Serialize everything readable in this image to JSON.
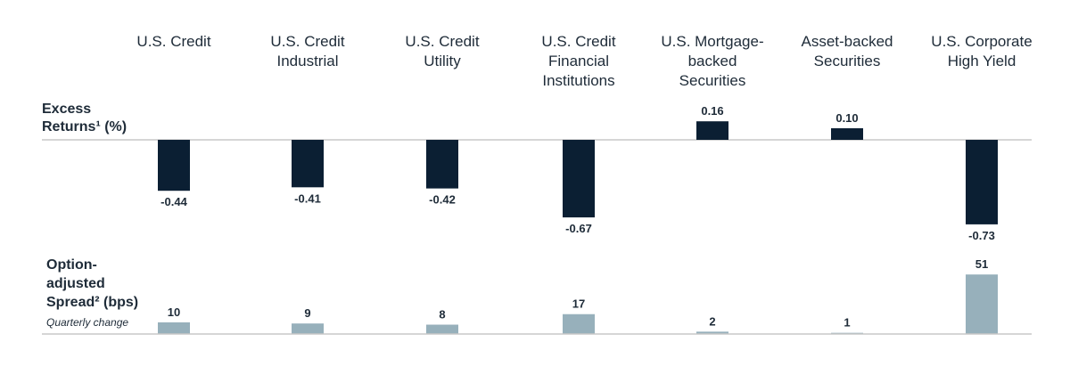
{
  "chart_data": [
    {
      "type": "bar",
      "title": "Excess Returns¹ (%)",
      "title_lines": [
        "Excess",
        "Returns¹ (%)"
      ],
      "categories": [
        [
          "U.S. Credit"
        ],
        [
          "U.S. Credit",
          "Industrial"
        ],
        [
          "U.S. Credit",
          "Utility"
        ],
        [
          "U.S. Credit",
          "Financial",
          "Institutions"
        ],
        [
          "U.S. Mortgage-",
          "backed",
          "Securities"
        ],
        [
          "Asset-backed",
          "Securities"
        ],
        [
          "U.S. Corporate",
          "High Yield"
        ]
      ],
      "values": [
        -0.44,
        -0.41,
        -0.42,
        -0.67,
        0.16,
        0.1,
        -0.73
      ],
      "labels": [
        "-0.44",
        "-0.41",
        "-0.42",
        "-0.67",
        "0.16",
        "0.10",
        "-0.73"
      ],
      "color": "#0b1f33"
    },
    {
      "type": "bar",
      "title": "Option-adjusted Spread² (bps)",
      "title_lines": [
        "Option-",
        "adjusted",
        "Spread² (bps)"
      ],
      "subtitle": "Quarterly change",
      "values": [
        10,
        9,
        8,
        17,
        2,
        1,
        51
      ],
      "labels": [
        "10",
        "9",
        "8",
        "17",
        "2",
        "1",
        "51"
      ],
      "color": "#97b0bb"
    }
  ]
}
